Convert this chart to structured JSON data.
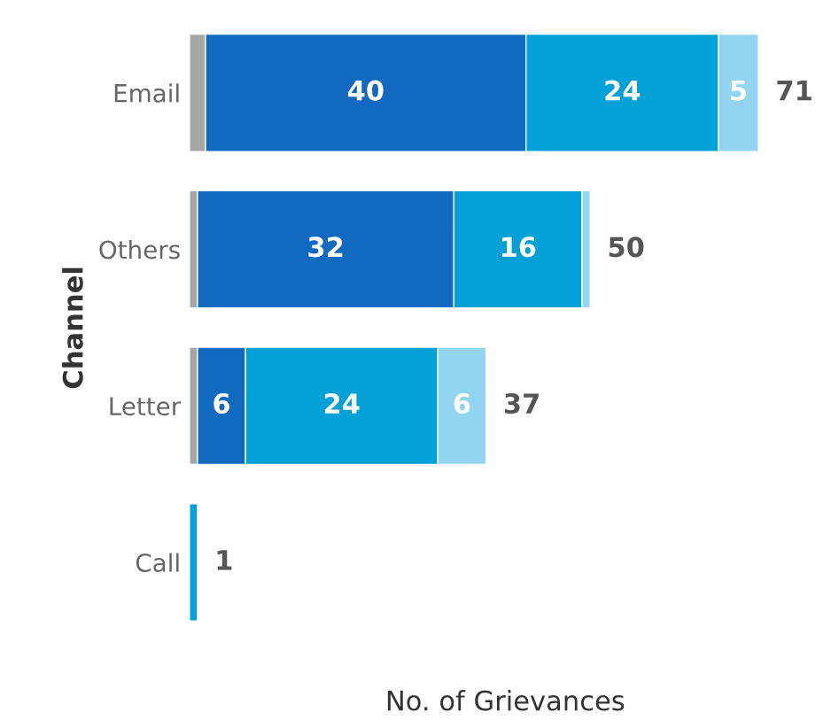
{
  "chart_data": {
    "type": "bar",
    "orientation": "horizontal",
    "stacked": true,
    "xlabel": "No. of Grievances",
    "ylabel": "Channel",
    "categories": [
      "Email",
      "Others",
      "Letter",
      "Call"
    ],
    "series": [
      {
        "color": "#a6a6a6",
        "values": [
          2,
          1,
          1,
          null
        ],
        "value_labels": [
          null,
          null,
          null,
          null
        ]
      },
      {
        "color": "#1169c0",
        "values": [
          40,
          32,
          6,
          null
        ],
        "value_labels": [
          "40",
          "32",
          "6",
          null
        ]
      },
      {
        "color": "#01a0d6",
        "values": [
          24,
          16,
          24,
          1
        ],
        "value_labels": [
          "24",
          "16",
          "24",
          null
        ]
      },
      {
        "color": "#93d5f0",
        "values": [
          5,
          1,
          6,
          null
        ],
        "value_labels": [
          "5",
          null,
          "6",
          null
        ]
      }
    ],
    "totals": [
      "71",
      "50",
      "37",
      "1"
    ],
    "tick_labels": "y",
    "grid": false,
    "legend": false
  }
}
